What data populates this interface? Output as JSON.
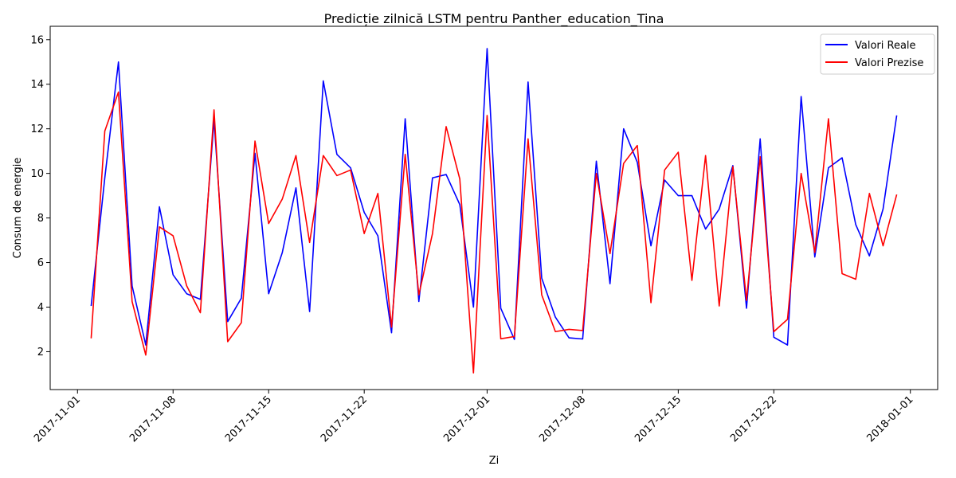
{
  "chart_data": {
    "type": "line",
    "title": "Predicție zilnică LSTM pentru Panther_education_Tina",
    "xlabel": "Zi",
    "ylabel": "Consum de energie",
    "xlim": [
      "2017-10-30",
      "2018-01-03"
    ],
    "ylim": [
      0.3,
      16.6
    ],
    "x_ticks": [
      "2017-11-01",
      "2017-11-08",
      "2017-11-15",
      "2017-11-22",
      "2017-12-01",
      "2017-12-08",
      "2017-12-15",
      "2017-12-22",
      "2018-01-01"
    ],
    "y_ticks": [
      2,
      4,
      6,
      8,
      10,
      12,
      14,
      16
    ],
    "grid": false,
    "legend_position": "top-right",
    "x": [
      "2017-11-02",
      "2017-11-03",
      "2017-11-04",
      "2017-11-05",
      "2017-11-06",
      "2017-11-07",
      "2017-11-08",
      "2017-11-09",
      "2017-11-10",
      "2017-11-11",
      "2017-11-12",
      "2017-11-13",
      "2017-11-14",
      "2017-11-15",
      "2017-11-16",
      "2017-11-17",
      "2017-11-18",
      "2017-11-19",
      "2017-11-20",
      "2017-11-21",
      "2017-11-22",
      "2017-11-23",
      "2017-11-24",
      "2017-11-25",
      "2017-11-26",
      "2017-11-27",
      "2017-11-28",
      "2017-11-29",
      "2017-11-30",
      "2017-12-01",
      "2017-12-02",
      "2017-12-03",
      "2017-12-04",
      "2017-12-05",
      "2017-12-06",
      "2017-12-07",
      "2017-12-08",
      "2017-12-09",
      "2017-12-10",
      "2017-12-11",
      "2017-12-12",
      "2017-12-13",
      "2017-12-14",
      "2017-12-15",
      "2017-12-16",
      "2017-12-17",
      "2017-12-18",
      "2017-12-19",
      "2017-12-20",
      "2017-12-21",
      "2017-12-22",
      "2017-12-23",
      "2017-12-24",
      "2017-12-25",
      "2017-12-26",
      "2017-12-27",
      "2017-12-28",
      "2017-12-29",
      "2017-12-30",
      "2017-12-31"
    ],
    "series": [
      {
        "name": "Valori Reale",
        "color": "#0000ff",
        "values": [
          4.05,
          9.8,
          15.0,
          4.95,
          2.3,
          8.5,
          5.45,
          4.6,
          4.35,
          12.4,
          3.35,
          4.4,
          10.9,
          4.6,
          6.45,
          9.35,
          3.8,
          14.15,
          10.85,
          10.25,
          8.25,
          7.2,
          2.85,
          12.45,
          4.25,
          9.8,
          9.95,
          8.6,
          4.0,
          15.6,
          3.95,
          2.55,
          14.1,
          5.3,
          3.55,
          2.62,
          2.57,
          10.55,
          5.05,
          12.0,
          10.5,
          6.75,
          9.7,
          9.0,
          9.0,
          7.5,
          8.4,
          10.35,
          3.95,
          11.55,
          2.65,
          2.3,
          13.45,
          6.25,
          10.25,
          10.7,
          7.7,
          6.3,
          8.4,
          12.6
        ]
      },
      {
        "name": "Valori Prezise",
        "color": "#ff0000",
        "values": [
          2.6,
          11.9,
          13.65,
          4.25,
          1.85,
          7.6,
          7.2,
          4.95,
          3.75,
          12.85,
          2.45,
          3.3,
          11.45,
          7.75,
          8.85,
          10.8,
          6.9,
          10.8,
          9.9,
          10.15,
          7.3,
          9.1,
          3.1,
          10.85,
          4.55,
          7.3,
          12.1,
          9.75,
          1.05,
          12.6,
          2.58,
          2.68,
          11.55,
          4.55,
          2.9,
          3.0,
          2.95,
          10.0,
          6.4,
          10.45,
          11.25,
          4.2,
          10.15,
          10.95,
          5.2,
          10.8,
          4.05,
          10.3,
          4.3,
          10.75,
          2.9,
          3.45,
          10.0,
          6.45,
          12.45,
          5.5,
          5.25,
          9.1,
          6.75,
          9.05
        ]
      }
    ]
  }
}
